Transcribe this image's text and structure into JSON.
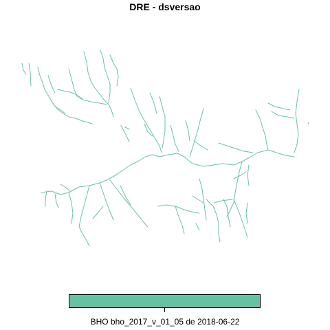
{
  "map": {
    "title": "DRE - dsversao",
    "stream_color": "#66c2a5"
  },
  "legend": {
    "label": "BHO bho_2017_v_01_05 de 2018-06-22",
    "color": "#66c2a5"
  }
}
